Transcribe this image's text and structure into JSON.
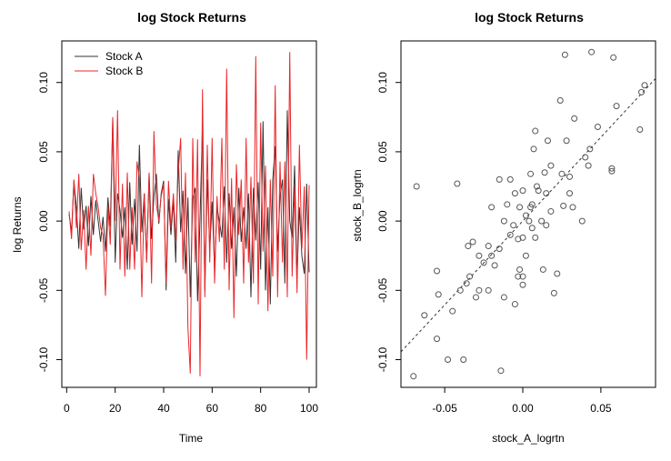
{
  "colors": {
    "stock_a": "#333333",
    "stock_b": "#e8272a",
    "fit_line": "#333333",
    "points": "#555555"
  },
  "chart_data": [
    {
      "type": "line",
      "title": "log Stock Returns",
      "xlabel": "Time",
      "ylabel": "log Returns",
      "xlim": [
        -2,
        103
      ],
      "ylim": [
        -0.12,
        0.13
      ],
      "xticks": [
        0,
        20,
        40,
        60,
        80,
        100
      ],
      "yticks": [
        -0.1,
        -0.05,
        0.0,
        0.05,
        0.1
      ],
      "xtick_labels": [
        "0",
        "20",
        "40",
        "60",
        "80",
        "100"
      ],
      "ytick_labels": [
        "-0.10",
        "-0.05",
        "0.00",
        "0.05",
        "0.10"
      ],
      "legend_position": "top-left",
      "grid": false,
      "x": [
        1,
        2,
        3,
        4,
        5,
        6,
        7,
        8,
        9,
        10,
        11,
        12,
        13,
        14,
        15,
        16,
        17,
        18,
        19,
        20,
        21,
        22,
        23,
        24,
        25,
        26,
        27,
        28,
        29,
        30,
        31,
        32,
        33,
        34,
        35,
        36,
        37,
        38,
        39,
        40,
        41,
        42,
        43,
        44,
        45,
        46,
        47,
        48,
        49,
        50,
        51,
        52,
        53,
        54,
        55,
        56,
        57,
        58,
        59,
        60,
        61,
        62,
        63,
        64,
        65,
        66,
        67,
        68,
        69,
        70,
        71,
        72,
        73,
        74,
        75,
        76,
        77,
        78,
        79,
        80,
        81,
        82,
        83,
        84,
        85,
        86,
        87,
        88,
        89,
        90,
        91,
        92,
        93,
        94,
        95,
        96,
        97,
        98,
        99,
        100
      ],
      "series": [
        {
          "name": "Stock A",
          "values": [
            0.005,
            -0.008,
            0.029,
            0.01,
            -0.02,
            0.024,
            -0.006,
            0.011,
            -0.018,
            0.018,
            -0.01,
            0.015,
            0.0,
            -0.015,
            0.003,
            -0.022,
            0.017,
            -0.004,
            0.074,
            -0.03,
            0.02,
            0.008,
            -0.012,
            0.01,
            -0.035,
            0.028,
            -0.017,
            0.016,
            -0.022,
            0.055,
            -0.008,
            0.02,
            -0.028,
            0.034,
            -0.013,
            0.018,
            0.034,
            -0.002,
            0.02,
            0.029,
            -0.05,
            0.016,
            -0.01,
            0.015,
            -0.03,
            0.051,
            -0.008,
            0.022,
            -0.038,
            0.017,
            -0.055,
            0.016,
            0.024,
            -0.058,
            0.002,
            0.069,
            -0.05,
            0.03,
            -0.02,
            0.014,
            -0.035,
            0.01,
            0.0,
            -0.012,
            0.025,
            -0.03,
            0.02,
            -0.02,
            0.01,
            -0.04,
            0.024,
            -0.015,
            0.01,
            -0.02,
            0.02,
            -0.055,
            0.024,
            -0.014,
            0.028,
            -0.035,
            0.072,
            -0.05,
            0.01,
            -0.06,
            0.03,
            0.054,
            -0.022,
            0.018,
            0.03,
            -0.045,
            0.08,
            0.0,
            -0.012,
            0.04,
            -0.04,
            0.01,
            -0.025,
            -0.038,
            0.027,
            -0.037
          ]
        },
        {
          "name": "Stock B",
          "values": [
            0.007,
            -0.013,
            0.03,
            -0.005,
            0.034,
            -0.021,
            0.008,
            -0.035,
            0.011,
            -0.025,
            0.034,
            0.02,
            0.01,
            -0.005,
            -0.01,
            -0.054,
            0.011,
            -0.017,
            0.075,
            0.0,
            0.08,
            -0.035,
            0.027,
            -0.04,
            0.035,
            -0.035,
            0.01,
            -0.035,
            0.043,
            0.031,
            -0.055,
            0.02,
            -0.03,
            0.035,
            -0.045,
            0.065,
            0.012,
            0.0,
            0.018,
            0.027,
            -0.045,
            0.029,
            -0.005,
            0.02,
            -0.014,
            0.035,
            0.06,
            -0.035,
            0.035,
            -0.077,
            -0.11,
            0.06,
            -0.03,
            0.059,
            -0.112,
            0.095,
            -0.055,
            0.055,
            -0.03,
            0.06,
            -0.045,
            0.018,
            -0.015,
            0.06,
            -0.035,
            0.11,
            -0.05,
            0.031,
            -0.07,
            0.041,
            -0.01,
            0.03,
            -0.045,
            0.06,
            -0.03,
            0.032,
            -0.045,
            0.119,
            -0.06,
            0.071,
            -0.022,
            0.04,
            -0.065,
            0.03,
            -0.04,
            0.098,
            -0.055,
            0.043,
            -0.03,
            0.043,
            -0.055,
            0.122,
            -0.04,
            0.025,
            -0.052,
            0.055,
            -0.02,
            0.025,
            -0.1,
            0.026
          ]
        }
      ]
    },
    {
      "type": "scatter",
      "title": "log Stock Returns",
      "xlabel": "stock_A_logrtn",
      "ylabel": "stock_B_logrtn",
      "xlim": [
        -0.078,
        0.085
      ],
      "ylim": [
        -0.12,
        0.13
      ],
      "xticks": [
        -0.05,
        0.0,
        0.05
      ],
      "yticks": [
        -0.1,
        -0.05,
        0.0,
        0.05,
        0.1
      ],
      "xtick_labels": [
        "-0.05",
        "0.00",
        "0.05"
      ],
      "ytick_labels": [
        "-0.10",
        "-0.05",
        "0.00",
        "0.05",
        "0.10"
      ],
      "grid": false,
      "fit_line": {
        "style": "dotted",
        "intercept": 0.0,
        "slope": 1.21
      },
      "points": [
        [
          -0.07,
          -0.112
        ],
        [
          -0.068,
          0.025
        ],
        [
          -0.063,
          -0.068
        ],
        [
          -0.055,
          -0.085
        ],
        [
          -0.054,
          -0.053
        ],
        [
          -0.055,
          -0.036
        ],
        [
          -0.045,
          -0.065
        ],
        [
          -0.048,
          -0.1
        ],
        [
          -0.04,
          -0.05
        ],
        [
          -0.042,
          0.027
        ],
        [
          -0.038,
          -0.1
        ],
        [
          -0.036,
          -0.045
        ],
        [
          -0.035,
          -0.018
        ],
        [
          -0.034,
          -0.04
        ],
        [
          -0.032,
          -0.015
        ],
        [
          -0.03,
          -0.055
        ],
        [
          -0.028,
          -0.05
        ],
        [
          -0.028,
          -0.025
        ],
        [
          -0.025,
          -0.03
        ],
        [
          -0.022,
          -0.018
        ],
        [
          -0.022,
          -0.05
        ],
        [
          -0.02,
          -0.025
        ],
        [
          -0.02,
          0.01
        ],
        [
          -0.018,
          -0.032
        ],
        [
          -0.015,
          0.03
        ],
        [
          -0.015,
          -0.02
        ],
        [
          -0.014,
          -0.108
        ],
        [
          -0.012,
          0.0
        ],
        [
          -0.012,
          -0.055
        ],
        [
          -0.01,
          0.012
        ],
        [
          -0.008,
          0.03
        ],
        [
          -0.008,
          -0.01
        ],
        [
          -0.006,
          -0.003
        ],
        [
          -0.005,
          -0.06
        ],
        [
          -0.005,
          0.02
        ],
        [
          -0.003,
          -0.013
        ],
        [
          -0.003,
          -0.04
        ],
        [
          -0.002,
          -0.035
        ],
        [
          -0.002,
          0.01
        ],
        [
          0.0,
          0.022
        ],
        [
          0.0,
          -0.012
        ],
        [
          0.0,
          -0.046
        ],
        [
          0.0,
          -0.04
        ],
        [
          0.002,
          0.004
        ],
        [
          0.002,
          -0.025
        ],
        [
          0.004,
          0.0
        ],
        [
          0.005,
          0.01
        ],
        [
          0.005,
          0.034
        ],
        [
          0.006,
          0.012
        ],
        [
          0.006,
          -0.005
        ],
        [
          0.007,
          0.052
        ],
        [
          0.008,
          0.065
        ],
        [
          0.008,
          -0.012
        ],
        [
          0.009,
          0.025
        ],
        [
          0.01,
          0.022
        ],
        [
          0.012,
          0.0
        ],
        [
          0.013,
          -0.035
        ],
        [
          0.014,
          0.035
        ],
        [
          0.015,
          -0.003
        ],
        [
          0.015,
          0.02
        ],
        [
          0.016,
          0.058
        ],
        [
          0.018,
          0.04
        ],
        [
          0.018,
          0.007
        ],
        [
          0.02,
          -0.052
        ],
        [
          0.022,
          -0.038
        ],
        [
          0.024,
          0.087
        ],
        [
          0.025,
          0.034
        ],
        [
          0.026,
          0.011
        ],
        [
          0.027,
          0.12
        ],
        [
          0.028,
          0.058
        ],
        [
          0.03,
          0.02
        ],
        [
          0.03,
          0.032
        ],
        [
          0.032,
          0.01
        ],
        [
          0.033,
          0.074
        ],
        [
          0.038,
          0.0
        ],
        [
          0.04,
          0.046
        ],
        [
          0.042,
          0.04
        ],
        [
          0.043,
          0.052
        ],
        [
          0.044,
          0.122
        ],
        [
          0.048,
          0.068
        ],
        [
          0.057,
          0.038
        ],
        [
          0.057,
          0.036
        ],
        [
          0.058,
          0.118
        ],
        [
          0.06,
          0.083
        ],
        [
          0.075,
          0.066
        ],
        [
          0.076,
          0.093
        ],
        [
          0.078,
          0.098
        ]
      ]
    }
  ]
}
